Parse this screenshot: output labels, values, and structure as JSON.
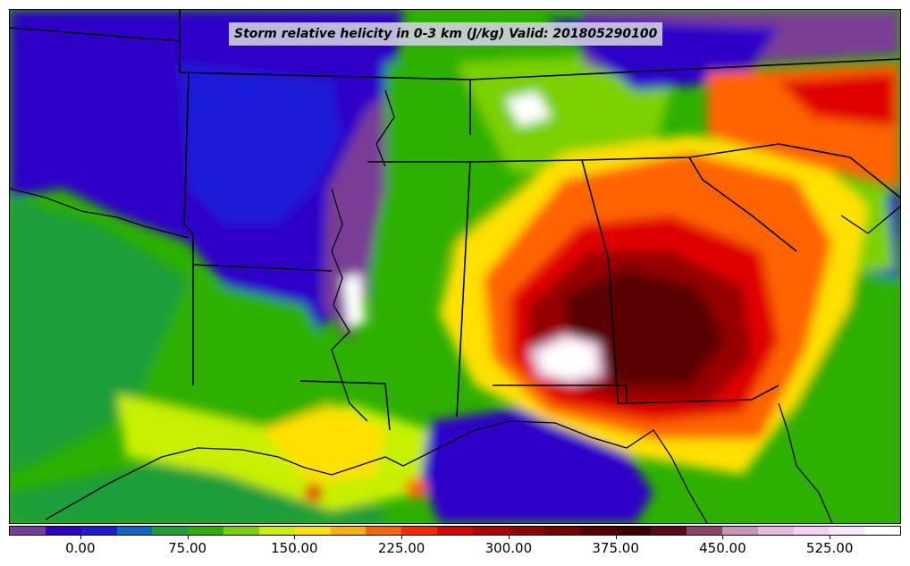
{
  "title": "Storm relative helicity in 0-3 km (J/kg) Valid: 201805290100",
  "colorbar": {
    "colors": [
      "#7a3c96",
      "#2e00c8",
      "#1d1dd8",
      "#1464c8",
      "#1e9e3a",
      "#2db000",
      "#7bd000",
      "#c8f000",
      "#ffe000",
      "#ffb000",
      "#ff6400",
      "#ff2800",
      "#e00000",
      "#b40000",
      "#960000",
      "#780000",
      "#5a0000",
      "#3c0000",
      "#5a0a14",
      "#8c4664",
      "#c896b4",
      "#e6bedc",
      "#f5d2f0",
      "#fae6fa",
      "#ffffff"
    ],
    "tick_labels": [
      "0.00",
      "75.00",
      "150.00",
      "225.00",
      "300.00",
      "375.00",
      "450.00",
      "525.00"
    ]
  }
}
